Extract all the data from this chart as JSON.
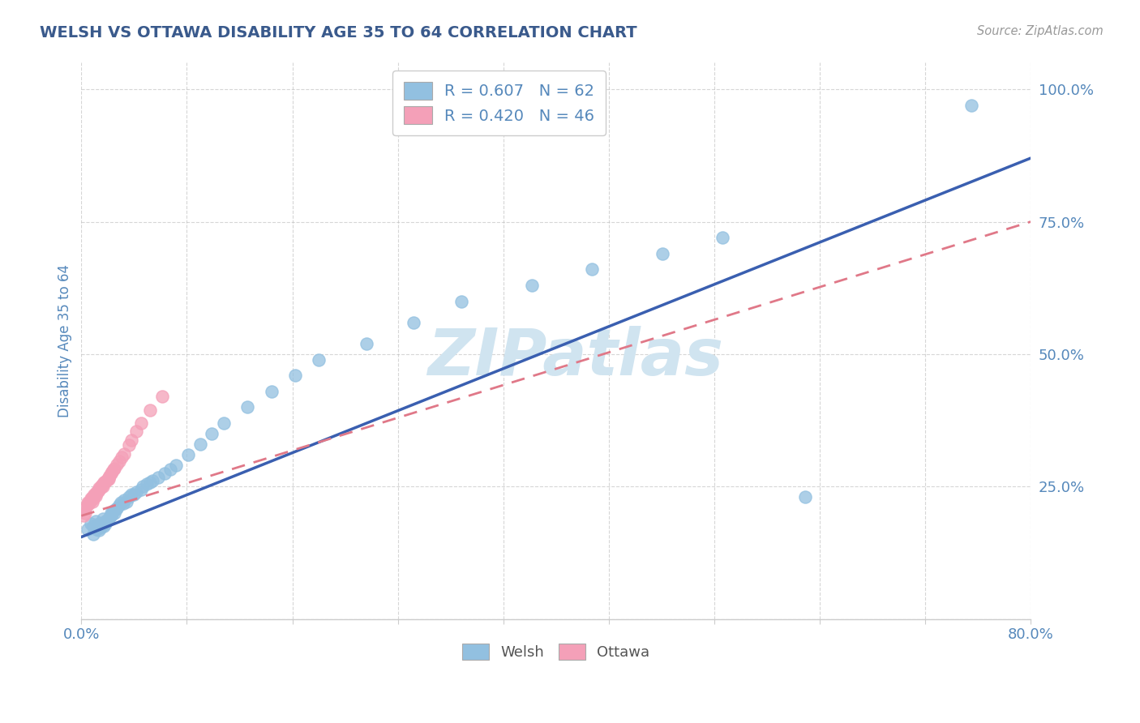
{
  "title": "WELSH VS OTTAWA DISABILITY AGE 35 TO 64 CORRELATION CHART",
  "source": "Source: ZipAtlas.com",
  "ylabel": "Disability Age 35 to 64",
  "yticks": [
    0.0,
    0.25,
    0.5,
    0.75,
    1.0
  ],
  "ytick_labels": [
    "",
    "25.0%",
    "50.0%",
    "75.0%",
    "100.0%"
  ],
  "xlim": [
    0.0,
    0.8
  ],
  "ylim": [
    0.0,
    1.05
  ],
  "welsh_R": 0.607,
  "welsh_N": 62,
  "ottawa_R": 0.42,
  "ottawa_N": 46,
  "welsh_color": "#92C0E0",
  "ottawa_color": "#F4A0B8",
  "welsh_line_color": "#3A5FB0",
  "ottawa_line_color": "#E07888",
  "background_color": "#FFFFFF",
  "grid_color": "#BBBBBB",
  "watermark": "ZIPatlas",
  "watermark_color": "#D0E4F0",
  "title_color": "#3A5A8C",
  "axis_color": "#5588BB",
  "welsh_x": [
    0.005,
    0.008,
    0.01,
    0.01,
    0.012,
    0.013,
    0.015,
    0.015,
    0.015,
    0.016,
    0.017,
    0.018,
    0.018,
    0.019,
    0.02,
    0.02,
    0.021,
    0.022,
    0.023,
    0.024,
    0.025,
    0.025,
    0.026,
    0.027,
    0.028,
    0.029,
    0.03,
    0.032,
    0.033,
    0.035,
    0.036,
    0.038,
    0.04,
    0.042,
    0.044,
    0.046,
    0.05,
    0.052,
    0.055,
    0.058,
    0.06,
    0.065,
    0.07,
    0.075,
    0.08,
    0.09,
    0.1,
    0.11,
    0.12,
    0.14,
    0.16,
    0.18,
    0.2,
    0.24,
    0.28,
    0.32,
    0.38,
    0.43,
    0.49,
    0.54,
    0.61,
    0.75
  ],
  "welsh_y": [
    0.17,
    0.18,
    0.16,
    0.175,
    0.185,
    0.17,
    0.175,
    0.168,
    0.18,
    0.172,
    0.178,
    0.182,
    0.19,
    0.175,
    0.18,
    0.185,
    0.185,
    0.188,
    0.19,
    0.192,
    0.195,
    0.2,
    0.198,
    0.205,
    0.2,
    0.208,
    0.21,
    0.215,
    0.22,
    0.218,
    0.225,
    0.222,
    0.23,
    0.235,
    0.235,
    0.24,
    0.245,
    0.25,
    0.255,
    0.258,
    0.262,
    0.268,
    0.275,
    0.282,
    0.29,
    0.31,
    0.33,
    0.35,
    0.37,
    0.4,
    0.43,
    0.46,
    0.49,
    0.52,
    0.56,
    0.6,
    0.63,
    0.66,
    0.69,
    0.72,
    0.23,
    0.97
  ],
  "ottawa_x": [
    0.002,
    0.003,
    0.003,
    0.005,
    0.005,
    0.006,
    0.007,
    0.008,
    0.008,
    0.009,
    0.009,
    0.01,
    0.011,
    0.011,
    0.012,
    0.013,
    0.013,
    0.014,
    0.015,
    0.015,
    0.016,
    0.017,
    0.017,
    0.018,
    0.018,
    0.019,
    0.02,
    0.021,
    0.022,
    0.023,
    0.023,
    0.024,
    0.025,
    0.026,
    0.027,
    0.028,
    0.03,
    0.032,
    0.034,
    0.036,
    0.04,
    0.042,
    0.046,
    0.05,
    0.058,
    0.068
  ],
  "ottawa_y": [
    0.195,
    0.2,
    0.21,
    0.215,
    0.22,
    0.218,
    0.222,
    0.225,
    0.228,
    0.222,
    0.23,
    0.228,
    0.232,
    0.235,
    0.233,
    0.238,
    0.24,
    0.242,
    0.245,
    0.248,
    0.248,
    0.25,
    0.252,
    0.255,
    0.25,
    0.258,
    0.26,
    0.262,
    0.265,
    0.268,
    0.265,
    0.27,
    0.275,
    0.278,
    0.282,
    0.285,
    0.292,
    0.298,
    0.305,
    0.312,
    0.328,
    0.338,
    0.355,
    0.37,
    0.395,
    0.42
  ],
  "welsh_line_x0": 0.0,
  "welsh_line_y0": 0.155,
  "welsh_line_x1": 0.8,
  "welsh_line_y1": 0.87,
  "ottawa_line_x0": 0.0,
  "ottawa_line_y0": 0.195,
  "ottawa_line_x1": 0.8,
  "ottawa_line_y1": 0.75
}
